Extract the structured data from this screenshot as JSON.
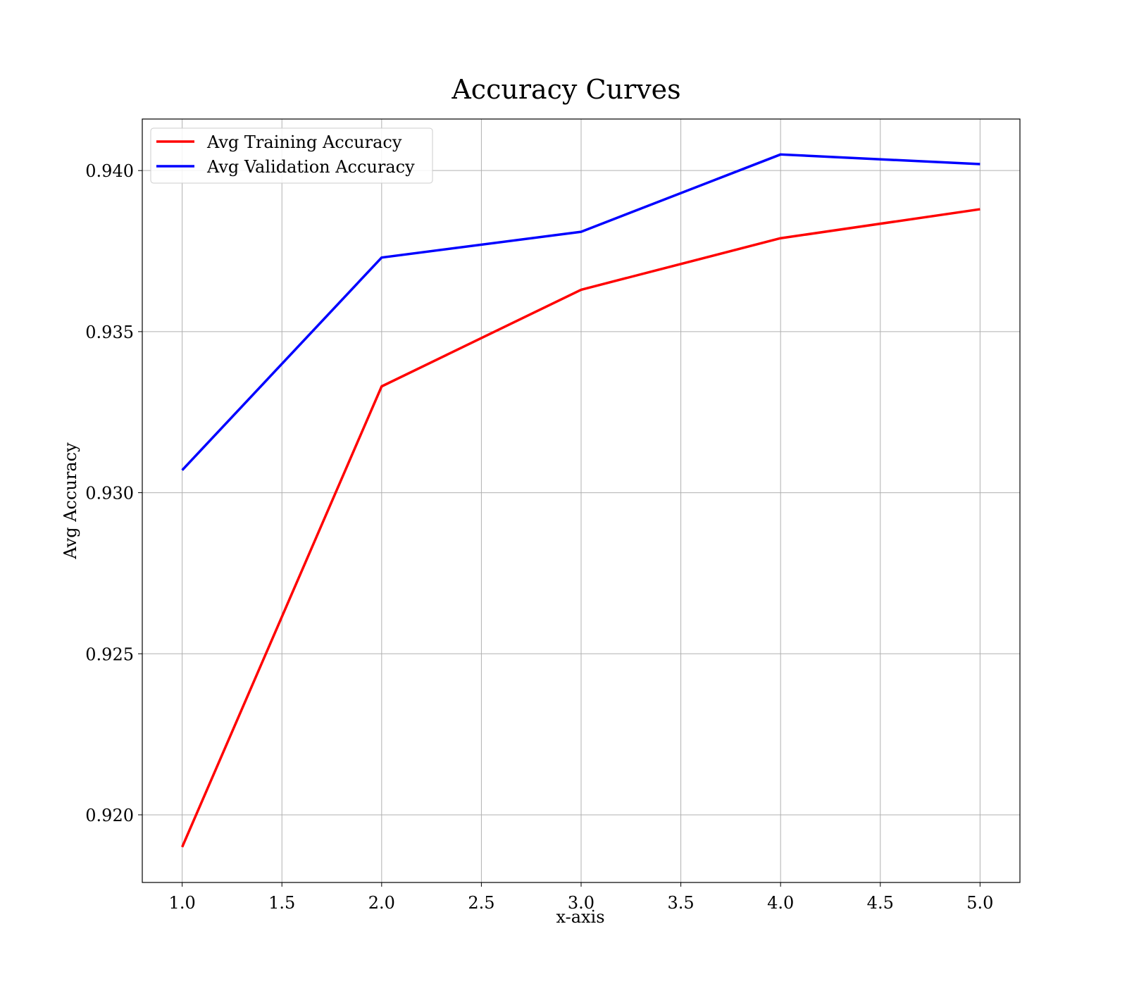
{
  "chart_data": {
    "type": "line",
    "title": "Accuracy Curves",
    "xlabel": "x-axis",
    "ylabel": "Avg Accuracy",
    "x": [
      1.0,
      2.0,
      3.0,
      4.0,
      5.0
    ],
    "series": [
      {
        "name": "Avg Training Accuracy",
        "color": "#ff0000",
        "values": [
          0.919,
          0.9333,
          0.9363,
          0.9379,
          0.9388
        ]
      },
      {
        "name": "Avg Validation Accuracy",
        "color": "#0000ff",
        "values": [
          0.9307,
          0.9373,
          0.9381,
          0.9405,
          0.9402
        ]
      }
    ],
    "xlim": [
      0.8,
      5.2
    ],
    "ylim": [
      0.9179,
      0.9416
    ],
    "xticks": [
      1.0,
      1.5,
      2.0,
      2.5,
      3.0,
      3.5,
      4.0,
      4.5,
      5.0
    ],
    "xtick_labels": [
      "1.0",
      "1.5",
      "2.0",
      "2.5",
      "3.0",
      "3.5",
      "4.0",
      "4.5",
      "5.0"
    ],
    "yticks": [
      0.92,
      0.925,
      0.93,
      0.935,
      0.94
    ],
    "ytick_labels": [
      "0.920",
      "0.925",
      "0.930",
      "0.935",
      "0.940"
    ],
    "grid": true,
    "legend_position": "upper-left"
  }
}
